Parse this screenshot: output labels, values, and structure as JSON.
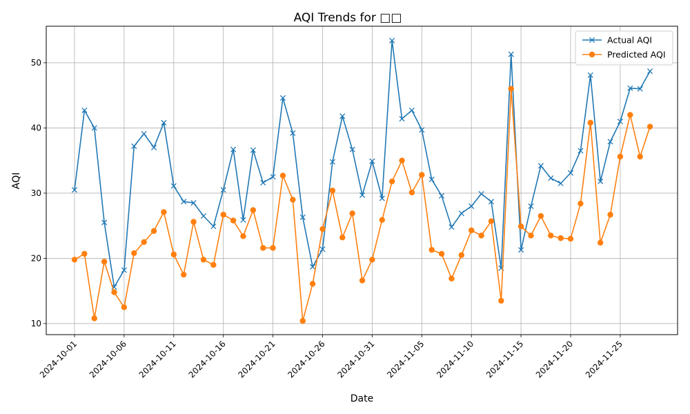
{
  "chart_data": {
    "type": "line",
    "title": "AQI Trends for □□",
    "xlabel": "Date",
    "ylabel": "AQI",
    "x_start": "2024-10-01",
    "x_tick_labels": [
      "2024-10-01",
      "2024-10-06",
      "2024-10-11",
      "2024-10-16",
      "2024-10-21",
      "2024-10-26",
      "2024-10-31",
      "2024-11-05",
      "2024-11-10",
      "2024-11-15",
      "2024-11-20",
      "2024-11-25"
    ],
    "y_ticks": [
      10,
      20,
      30,
      40,
      50
    ],
    "ylim": [
      8.3,
      55.6
    ],
    "grid": true,
    "legend_position": "top-right",
    "series": [
      {
        "name": "Actual AQI",
        "color": "#1f77b4",
        "marker": "x",
        "values": [
          30.5,
          42.7,
          40.0,
          25.5,
          15.6,
          18.2,
          37.2,
          39.1,
          37.0,
          40.8,
          31.1,
          28.7,
          28.5,
          26.5,
          24.9,
          30.5,
          36.7,
          25.9,
          36.6,
          31.6,
          32.5,
          44.6,
          39.2,
          26.3,
          18.7,
          21.4,
          34.8,
          41.8,
          36.7,
          29.7,
          34.9,
          29.2,
          53.4,
          41.4,
          42.7,
          39.7,
          32.1,
          29.6,
          24.8,
          26.9,
          28.0,
          29.9,
          28.7,
          18.5,
          51.3,
          21.3,
          28.0,
          34.2,
          32.3,
          31.5,
          33.1,
          36.5,
          48.1,
          31.8,
          37.9,
          41.0,
          46.1,
          46.0,
          48.7
        ]
      },
      {
        "name": "Predicted AQI",
        "color": "#ff7f0e",
        "marker": "o",
        "values": [
          19.8,
          20.7,
          10.8,
          19.5,
          14.8,
          12.5,
          20.8,
          22.5,
          24.2,
          27.1,
          20.6,
          17.5,
          25.6,
          19.8,
          19.0,
          26.7,
          25.8,
          23.4,
          27.4,
          21.6,
          21.6,
          32.7,
          29.0,
          10.4,
          16.1,
          24.5,
          30.4,
          23.2,
          26.9,
          16.6,
          19.8,
          25.9,
          31.8,
          35.0,
          30.1,
          32.8,
          21.3,
          20.7,
          16.9,
          20.5,
          24.3,
          23.5,
          25.7,
          13.5,
          46.0,
          24.9,
          23.5,
          26.5,
          23.5,
          23.1,
          23.0,
          28.4,
          40.8,
          22.4,
          26.7,
          35.6,
          42.0,
          35.6,
          40.2
        ]
      }
    ]
  }
}
